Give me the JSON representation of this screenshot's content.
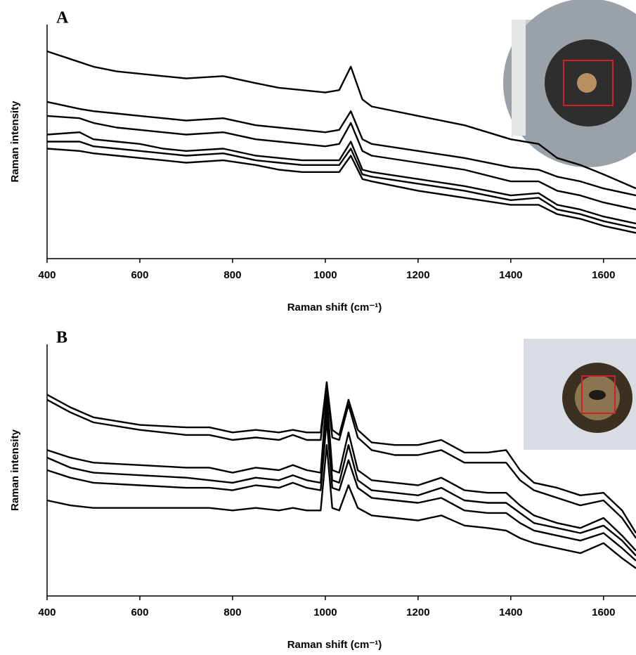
{
  "chart_data": [
    {
      "type": "line",
      "panel_label": "A",
      "xlabel": "Raman shift (cm⁻¹)",
      "ylabel": "Raman intensity",
      "xlim": [
        400,
        1670
      ],
      "ylim": [
        0,
        100
      ],
      "xticks": [
        400,
        600,
        800,
        1000,
        1200,
        1400,
        1600
      ],
      "x": [
        400,
        470,
        500,
        550,
        600,
        650,
        700,
        780,
        850,
        900,
        950,
        1000,
        1030,
        1055,
        1080,
        1100,
        1200,
        1300,
        1400,
        1460,
        1500,
        1550,
        1600,
        1670
      ],
      "series": [
        {
          "color": "#000000",
          "values": [
            88.6,
            84,
            82,
            80,
            79,
            78,
            77,
            78,
            75,
            73,
            72,
            71,
            72,
            82,
            68,
            65,
            61,
            57,
            51,
            49,
            43,
            40,
            36,
            30
          ]
        },
        {
          "color": "#000000",
          "values": [
            67,
            64,
            63,
            62,
            61,
            60,
            59,
            60,
            57,
            56,
            55,
            54,
            55,
            63,
            51,
            49,
            46,
            43,
            39,
            38,
            35,
            33,
            30,
            27
          ]
        },
        {
          "color": "#000000",
          "values": [
            61,
            60,
            58,
            56,
            55,
            54,
            53,
            54,
            51,
            50,
            49,
            48,
            49,
            58,
            46,
            44,
            41,
            38,
            33,
            33,
            29,
            27,
            24,
            21
          ]
        },
        {
          "color": "#000000",
          "values": [
            53,
            54,
            51,
            50,
            49,
            47,
            46,
            47,
            44,
            43,
            42,
            42,
            42,
            50,
            38,
            37,
            34,
            31,
            27,
            28,
            23,
            21,
            18,
            15
          ]
        },
        {
          "color": "#000000",
          "values": [
            50,
            50,
            48,
            47,
            46,
            45,
            44,
            45,
            42,
            41,
            40,
            40,
            40,
            47,
            36,
            35,
            32,
            29,
            25,
            26,
            21,
            19,
            16,
            13
          ]
        },
        {
          "color": "#000000",
          "values": [
            47,
            46,
            45,
            44,
            43,
            42,
            41,
            42,
            40,
            38,
            37,
            37,
            37,
            44,
            34,
            33,
            29,
            26,
            23,
            23,
            19,
            17,
            14,
            11
          ]
        }
      ]
    },
    {
      "type": "line",
      "panel_label": "B",
      "xlabel": "Raman shift (cm⁻¹)",
      "ylabel": "Raman intensity",
      "xlim": [
        400,
        1670
      ],
      "ylim": [
        0,
        100
      ],
      "xticks": [
        400,
        600,
        800,
        1000,
        1200,
        1400,
        1600
      ],
      "x": [
        400,
        450,
        500,
        600,
        700,
        750,
        800,
        850,
        900,
        930,
        960,
        990,
        1003,
        1015,
        1030,
        1050,
        1070,
        1100,
        1150,
        1200,
        1250,
        1300,
        1350,
        1390,
        1420,
        1450,
        1500,
        1550,
        1600,
        1640,
        1670
      ],
      "series": [
        {
          "color": "#000000",
          "values": [
            80,
            75,
            71,
            68,
            67,
            67,
            65,
            66,
            65,
            66,
            65,
            65,
            85,
            66,
            64,
            78,
            66,
            61,
            60,
            60,
            62,
            57,
            57,
            58,
            50,
            45,
            43,
            40,
            41,
            34,
            25
          ]
        },
        {
          "color": "#000000",
          "values": [
            78,
            73,
            69,
            66,
            64,
            64,
            62,
            63,
            62,
            64,
            62,
            62,
            84,
            63,
            62,
            76,
            63,
            58,
            56,
            56,
            58,
            53,
            53,
            53,
            46,
            42,
            39,
            36,
            38,
            31,
            23
          ]
        },
        {
          "color": "#000000",
          "values": [
            58,
            55,
            53,
            52,
            51,
            51,
            49,
            51,
            50,
            52,
            50,
            49,
            80,
            50,
            49,
            65,
            50,
            46,
            45,
            44,
            47,
            42,
            41,
            41,
            36,
            32,
            29,
            27,
            31,
            24,
            18
          ]
        },
        {
          "color": "#000000",
          "values": [
            55,
            51,
            49,
            48,
            47,
            46,
            45,
            47,
            46,
            48,
            46,
            45,
            75,
            46,
            45,
            60,
            46,
            42,
            41,
            40,
            43,
            38,
            37,
            37,
            33,
            29,
            27,
            25,
            28,
            22,
            16
          ]
        },
        {
          "color": "#000000",
          "values": [
            50,
            47,
            45,
            44,
            43,
            43,
            42,
            44,
            43,
            45,
            43,
            42,
            70,
            43,
            42,
            54,
            43,
            39,
            38,
            37,
            39,
            34,
            33,
            33,
            29,
            26,
            24,
            22,
            25,
            19,
            14
          ]
        },
        {
          "color": "#000000",
          "values": [
            38,
            36,
            35,
            35,
            35,
            35,
            34,
            35,
            34,
            35,
            34,
            34,
            60,
            35,
            34,
            44,
            35,
            32,
            31,
            30,
            32,
            28,
            27,
            26,
            23,
            21,
            19,
            17,
            21,
            15,
            11
          ]
        }
      ]
    }
  ]
}
